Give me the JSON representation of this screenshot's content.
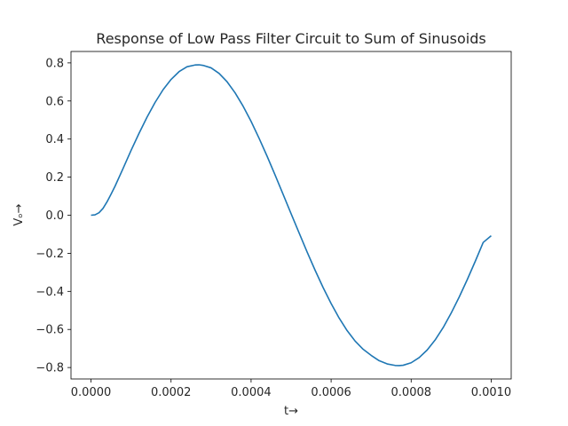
{
  "chart_data": {
    "type": "line",
    "title": "Response of Low Pass Filter Circuit to Sum of Sinusoids",
    "xlabel": "t→",
    "ylabel": "Vₒ→",
    "xlim": [
      -5e-05,
      0.00105
    ],
    "ylim": [
      -0.86,
      0.86
    ],
    "xticks": [
      0.0,
      0.0002,
      0.0004,
      0.0006,
      0.0008,
      0.001
    ],
    "xtick_labels": [
      "0.0000",
      "0.0002",
      "0.0004",
      "0.0006",
      "0.0008",
      "0.0010"
    ],
    "yticks": [
      -0.8,
      -0.6,
      -0.4,
      -0.2,
      0.0,
      0.2,
      0.4,
      0.6,
      0.8
    ],
    "ytick_labels": [
      "−0.8",
      "−0.6",
      "−0.4",
      "−0.2",
      "0.0",
      "0.2",
      "0.4",
      "0.6",
      "0.8"
    ],
    "grid": false,
    "line_color": "#1f77b4",
    "series": [
      {
        "x": [
          0,
          1e-05,
          2e-05,
          3e-05,
          4e-05,
          5e-05,
          6e-05,
          8e-05,
          0.0001,
          0.00012,
          0.00014,
          0.00016,
          0.00018,
          0.0002,
          0.00022,
          0.00024,
          0.00026,
          0.00027,
          0.00028,
          0.0003,
          0.00032,
          0.00034,
          0.00036,
          0.00038,
          0.0004,
          0.00042,
          0.00044,
          0.00046,
          0.00048,
          0.0005,
          0.00052,
          0.00054,
          0.00056,
          0.00058,
          0.0006,
          0.00062,
          0.00064,
          0.00066,
          0.00068,
          0.0007,
          0.00072,
          0.00074,
          0.00076,
          0.00077,
          0.00078,
          0.0008,
          0.00082,
          0.00084,
          0.00086,
          0.00088,
          0.0009,
          0.00092,
          0.00094,
          0.00096,
          0.00098,
          0.001
        ],
        "y": [
          0.0,
          0.002,
          0.013,
          0.036,
          0.07,
          0.11,
          0.152,
          0.245,
          0.34,
          0.43,
          0.515,
          0.592,
          0.659,
          0.713,
          0.754,
          0.78,
          0.789,
          0.79,
          0.787,
          0.774,
          0.745,
          0.701,
          0.643,
          0.573,
          0.493,
          0.404,
          0.31,
          0.211,
          0.11,
          0.008,
          -0.093,
          -0.193,
          -0.289,
          -0.38,
          -0.464,
          -0.54,
          -0.606,
          -0.661,
          -0.704,
          -0.736,
          -0.764,
          -0.781,
          -0.789,
          -0.79,
          -0.788,
          -0.775,
          -0.748,
          -0.708,
          -0.655,
          -0.59,
          -0.514,
          -0.43,
          -0.339,
          -0.243,
          -0.143,
          -0.108
        ]
      }
    ]
  }
}
